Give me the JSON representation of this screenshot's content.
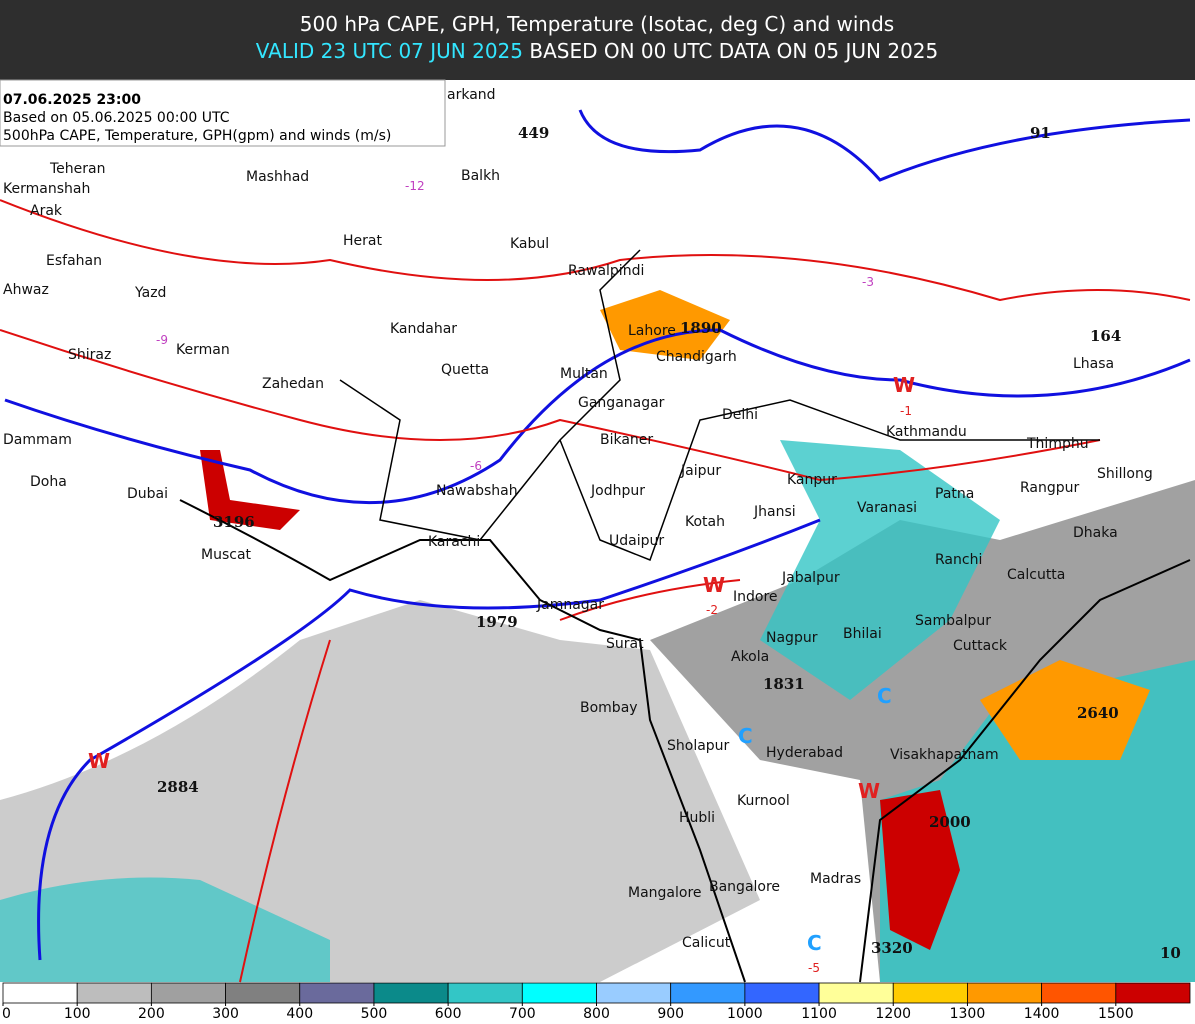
{
  "header": {
    "title": "500 hPa CAPE, GPH, Temperature (Isotac, deg C) and winds",
    "valid": "VALID 23 UTC 07 JUN 2025",
    "based": "BASED ON 00 UTC DATA ON 05 JUN 2025"
  },
  "info": [
    "07.06.2025 23:00",
    "Based on 05.06.2025 00:00 UTC",
    "500hPa CAPE, Temperature, GPH(gpm) and winds (m/s)"
  ],
  "cities": [
    "arkand",
    "Teheran",
    "Kermanshah",
    "Mashhad",
    "Balkh",
    "Arak",
    "Herat",
    "Kabul",
    "Esfahan",
    "Rawalpindi",
    "Ahwaz",
    "Yazd",
    "Lahore",
    "Kandahar",
    "Chandigarh",
    "Shiraz",
    "Kerman",
    "Quetta",
    "Multan",
    "Zahedan",
    "Ganganagar",
    "Delhi",
    "Kathmandu",
    "Thimphu",
    "Dammam",
    "Bikaner",
    "Jaipur",
    "Kanpur",
    "Shillong",
    "Doha",
    "Dubai",
    "Nawabshah",
    "Jodhpur",
    "Patna",
    "Rangpur",
    "Varanasi",
    "Jhansi",
    "Kotah",
    "Dhaka",
    "Muscat",
    "Karachi",
    "Udaipur",
    "Ranchi",
    "Calcutta",
    "Jabalpur",
    "Indore",
    "Jamnagar",
    "Sambalpur",
    "Surat",
    "Nagpur",
    "Bhilai",
    "Cuttack",
    "Akola",
    "Bombay",
    "Sholapur",
    "Hyderabad",
    "Visakhapatnam",
    "Kurnool",
    "Hubli",
    "Madras",
    "Mangalore",
    "Bangalore",
    "Calicut",
    "Lhasa"
  ],
  "values": [
    449,
    91,
    164,
    1890,
    3196,
    1979,
    1831,
    2640,
    2000,
    3320,
    10,
    2884
  ],
  "markers": [
    {
      "label": "W",
      "color": "#e02020"
    },
    {
      "label": "W",
      "color": "#e02020"
    },
    {
      "label": "W",
      "color": "#e02020"
    },
    {
      "label": "W",
      "color": "#e02020"
    },
    {
      "label": "C",
      "color": "#20a0ff"
    },
    {
      "label": "C",
      "color": "#20a0ff"
    },
    {
      "label": "C",
      "color": "#20a0ff"
    }
  ],
  "temps": [
    -1,
    -2,
    -5,
    -3,
    -6,
    -9,
    -12
  ],
  "colorbar": {
    "ticks": [
      0,
      100,
      200,
      300,
      400,
      500,
      600,
      700,
      800,
      900,
      1000,
      1100,
      1200,
      1300,
      1400,
      1500
    ],
    "colors": [
      "#ffffff",
      "#bdbdbd",
      "#a0a0a0",
      "#808080",
      "#6a6a9c",
      "#0b8a8a",
      "#33c6c6",
      "#00ffff",
      "#99ccff",
      "#3399ff",
      "#3366ff",
      "#ffff99",
      "#ffcc00",
      "#ff9900",
      "#ff5500",
      "#cc0000"
    ]
  }
}
